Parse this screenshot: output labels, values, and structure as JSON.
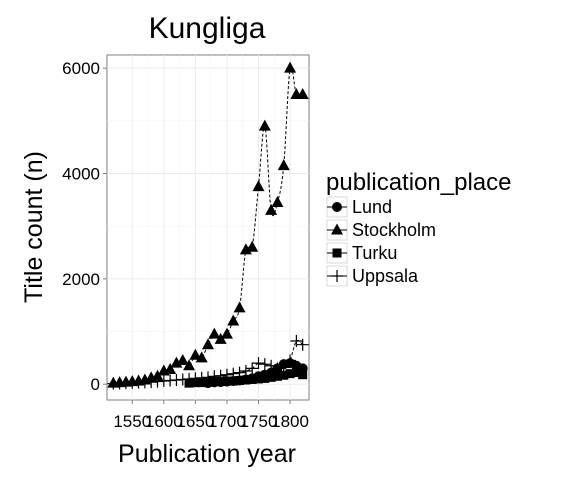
{
  "chart_data": {
    "type": "line",
    "title": "Kungliga",
    "xlabel": "Publication year",
    "ylabel": "Title count (n)",
    "xlim": [
      1510,
      1830
    ],
    "ylim": [
      -300,
      6250
    ],
    "x_ticks": [
      1550,
      1600,
      1650,
      1700,
      1750,
      1800
    ],
    "x_tick_labels": [
      "1550",
      "1600",
      "1650",
      "1700",
      "1750",
      "1800"
    ],
    "y_ticks": [
      0,
      2000,
      4000,
      6000
    ],
    "y_tick_labels": [
      "0",
      "2000",
      "4000",
      "6000"
    ],
    "grid": true,
    "legend": {
      "title": "publication_place",
      "placement": "right",
      "entries": [
        "Lund",
        "Stockholm",
        "Turku",
        "Uppsala"
      ]
    },
    "colors": {
      "panel": "#ffffff",
      "grid": "#ebebeb",
      "border": "#7f7f7f",
      "marks": "#000000"
    },
    "series": [
      {
        "name": "Lund",
        "marker": "circle",
        "x": [
          1670,
          1680,
          1690,
          1700,
          1710,
          1720,
          1730,
          1740,
          1750,
          1760,
          1770,
          1780,
          1790,
          1800,
          1810,
          1820
        ],
        "values": [
          20,
          35,
          40,
          50,
          60,
          70,
          90,
          110,
          150,
          180,
          220,
          300,
          380,
          400,
          350,
          300
        ]
      },
      {
        "name": "Stockholm",
        "marker": "triangle",
        "x": [
          1520,
          1530,
          1540,
          1550,
          1560,
          1570,
          1580,
          1590,
          1600,
          1610,
          1620,
          1630,
          1640,
          1650,
          1660,
          1670,
          1680,
          1690,
          1700,
          1710,
          1720,
          1730,
          1740,
          1750,
          1760,
          1770,
          1780,
          1790,
          1800,
          1810,
          1820
        ],
        "values": [
          20,
          30,
          40,
          50,
          60,
          80,
          120,
          150,
          250,
          280,
          400,
          450,
          350,
          550,
          500,
          750,
          950,
          850,
          950,
          1200,
          1450,
          2550,
          2600,
          3750,
          4900,
          3300,
          3450,
          4150,
          6000,
          5500,
          5500
        ]
      },
      {
        "name": "Turku",
        "marker": "square",
        "x": [
          1640,
          1650,
          1660,
          1670,
          1680,
          1690,
          1700,
          1710,
          1720,
          1730,
          1740,
          1750,
          1760,
          1770,
          1780,
          1790,
          1800,
          1810,
          1820
        ],
        "values": [
          20,
          30,
          30,
          40,
          50,
          50,
          60,
          60,
          70,
          80,
          90,
          100,
          110,
          130,
          150,
          170,
          200,
          220,
          180
        ]
      },
      {
        "name": "Uppsala",
        "marker": "plus",
        "x": [
          1520,
          1530,
          1540,
          1550,
          1560,
          1570,
          1580,
          1590,
          1600,
          1610,
          1620,
          1630,
          1640,
          1650,
          1660,
          1670,
          1680,
          1690,
          1700,
          1710,
          1720,
          1730,
          1740,
          1750,
          1760,
          1770,
          1780,
          1790,
          1800,
          1810,
          1820
        ],
        "values": [
          10,
          15,
          20,
          25,
          30,
          35,
          40,
          50,
          60,
          70,
          80,
          90,
          100,
          110,
          120,
          130,
          150,
          160,
          180,
          200,
          220,
          250,
          300,
          400,
          380,
          350,
          300,
          320,
          450,
          820,
          750
        ]
      }
    ]
  }
}
